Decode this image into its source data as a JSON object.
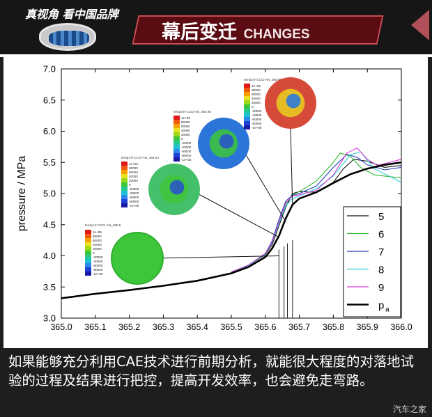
{
  "header": {
    "logo_slogan": "真视角 看中国品牌",
    "title_cn": "幕后变迁",
    "title_en": "CHANGES"
  },
  "chart_data": {
    "type": "line",
    "title": "",
    "xlabel": "",
    "ylabel": "pressure / MPa",
    "xlim": [
      365.0,
      366.0
    ],
    "ylim": [
      3.0,
      7.0
    ],
    "x_ticks": [
      "365.0",
      "365.1",
      "365.2",
      "365.3",
      "365.4",
      "365.5",
      "365.6",
      "365.7",
      "365.8",
      "365.9",
      "366.0"
    ],
    "y_ticks": [
      "3.0",
      "3.5",
      "4.0",
      "4.5",
      "5.0",
      "5.5",
      "6.0",
      "6.5",
      "7.0"
    ],
    "legend": {
      "placement": "bottom-right",
      "entries": [
        {
          "label": "5",
          "color": "#111111"
        },
        {
          "label": "6",
          "color": "#2db82d"
        },
        {
          "label": "7",
          "color": "#2a3fb8"
        },
        {
          "label": "8",
          "color": "#2fd3d3"
        },
        {
          "label": "9",
          "color": "#d63ad6"
        },
        {
          "label": "p",
          "sub": "a",
          "color": "#000000"
        }
      ]
    },
    "series": [
      {
        "name": "p_a",
        "color": "#000000",
        "width": 2.6,
        "x": [
          365.0,
          365.1,
          365.2,
          365.3,
          365.4,
          365.5,
          365.55,
          365.6,
          365.62,
          365.64,
          365.66,
          365.68,
          365.7,
          365.75,
          365.8,
          365.85,
          365.9,
          365.95,
          366.0
        ],
        "y": [
          3.32,
          3.39,
          3.45,
          3.52,
          3.6,
          3.72,
          3.82,
          3.98,
          4.12,
          4.32,
          4.6,
          4.82,
          4.92,
          5.02,
          5.17,
          5.31,
          5.4,
          5.46,
          5.5
        ]
      },
      {
        "name": "5",
        "color": "#111111",
        "width": 1.1,
        "x": [
          365.5,
          365.55,
          365.6,
          365.62,
          365.64,
          365.66,
          365.68,
          365.7,
          365.75,
          365.8,
          365.83,
          365.86,
          365.9,
          365.95,
          366.0
        ],
        "y": [
          3.74,
          3.84,
          4.02,
          4.18,
          4.48,
          4.78,
          5.0,
          5.03,
          5.02,
          5.18,
          5.4,
          5.55,
          5.52,
          5.42,
          5.45
        ]
      },
      {
        "name": "6",
        "color": "#2db82d",
        "width": 1.1,
        "x": [
          365.5,
          365.55,
          365.6,
          365.62,
          365.64,
          365.66,
          365.68,
          365.7,
          365.75,
          365.8,
          365.82,
          365.85,
          365.88,
          365.92,
          366.0
        ],
        "y": [
          3.74,
          3.85,
          4.04,
          4.22,
          4.55,
          4.83,
          4.98,
          5.03,
          5.2,
          5.5,
          5.65,
          5.6,
          5.42,
          5.3,
          5.25
        ]
      },
      {
        "name": "7",
        "color": "#2a3fb8",
        "width": 1.1,
        "x": [
          365.5,
          365.55,
          365.6,
          365.62,
          365.64,
          365.66,
          365.68,
          365.7,
          365.75,
          365.8,
          365.84,
          365.87,
          365.9,
          365.95,
          366.0
        ],
        "y": [
          3.74,
          3.85,
          4.04,
          4.24,
          4.58,
          4.88,
          4.97,
          5.0,
          5.12,
          5.42,
          5.63,
          5.58,
          5.46,
          5.38,
          5.42
        ]
      },
      {
        "name": "8",
        "color": "#2fd3d3",
        "width": 1.1,
        "x": [
          365.5,
          365.55,
          365.6,
          365.62,
          365.64,
          365.66,
          365.68,
          365.7,
          365.75,
          365.8,
          365.85,
          365.88,
          365.92,
          366.0
        ],
        "y": [
          3.73,
          3.84,
          4.03,
          4.21,
          4.52,
          4.8,
          4.92,
          4.96,
          5.08,
          5.28,
          5.62,
          5.67,
          5.4,
          5.18
        ]
      },
      {
        "name": "9",
        "color": "#d63ad6",
        "width": 1.1,
        "x": [
          365.5,
          365.55,
          365.6,
          365.62,
          365.64,
          365.66,
          365.68,
          365.7,
          365.75,
          365.8,
          365.84,
          365.87,
          365.9,
          365.93,
          366.0
        ],
        "y": [
          3.74,
          3.85,
          4.04,
          4.22,
          4.55,
          4.85,
          4.96,
          4.98,
          5.05,
          5.3,
          5.65,
          5.73,
          5.55,
          5.45,
          5.55
        ]
      }
    ],
    "markers_x": [
      365.64,
      365.655,
      365.665,
      365.68
    ],
    "snapshots": [
      {
        "name": "snapshot-1",
        "header": "temp4.fr-CCCl-AN_365.5",
        "bg": "green",
        "colorbar_labels": [
          "1e+05",
          "80000",
          "60000",
          "40000",
          "20000",
          "0",
          "-20000",
          "-40000",
          "-60000",
          "-80000",
          "-1e+05"
        ]
      },
      {
        "name": "snapshot-2",
        "header": "temp4.fr-CCCl-AN_365.64",
        "bg": "mixed",
        "colorbar_labels": [
          "1e+05",
          "80000",
          "60000",
          "40000",
          "20000",
          "0",
          "-20000",
          "-40000",
          "-60000",
          "-80000",
          "-1e+05"
        ]
      },
      {
        "name": "snapshot-3",
        "header": "temp4.fr-CCCl-AN_365.66",
        "bg": "blue",
        "colorbar_labels": [
          "1e+05",
          "80000",
          "60000",
          "40000",
          "20000",
          "0",
          "-20000",
          "-40000",
          "-60000",
          "-80000",
          "-1e+05"
        ]
      },
      {
        "name": "snapshot-4",
        "header": "temp4.fr-CCCl-AN_365.68",
        "bg": "red",
        "colorbar_labels": [
          "1e+05",
          "80000",
          "60000",
          "40000",
          "20000",
          "0",
          "-20000",
          "-40000",
          "-60000",
          "-80000",
          "-1e+05"
        ]
      }
    ]
  },
  "caption": {
    "text": "如果能够充分利用CAE技术进行前期分析，就能很大程度的对落地试验的过程及结果进行把控，提高开发效率，也会避免走弯路。",
    "watermark": "汽车之家"
  }
}
